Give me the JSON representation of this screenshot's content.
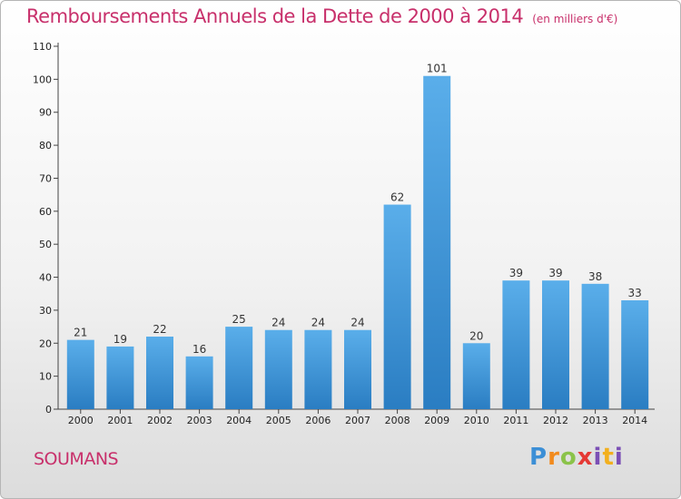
{
  "header": {
    "title": "Remboursements Annuels de la Dette de 2000 à 2014",
    "subtitle": "(en milliers d'€)"
  },
  "footer": {
    "commune": "SOUMANS",
    "logo": [
      "P",
      "r",
      "o",
      "x",
      "i",
      "t",
      "i"
    ]
  },
  "colors": {
    "accent": "#c8306b",
    "bar_top": "#5aaeea",
    "bar_bottom": "#2a7dc2"
  },
  "chart_data": {
    "type": "bar",
    "title": "Remboursements Annuels de la Dette de 2000 à 2014",
    "xlabel": "",
    "ylabel": "",
    "categories": [
      "2000",
      "2001",
      "2002",
      "2003",
      "2004",
      "2005",
      "2006",
      "2007",
      "2008",
      "2009",
      "2010",
      "2011",
      "2012",
      "2013",
      "2014"
    ],
    "values": [
      21,
      19,
      22,
      16,
      25,
      24,
      24,
      24,
      62,
      101,
      20,
      39,
      39,
      38,
      33
    ],
    "ylim": [
      0,
      110
    ],
    "yticks": [
      0,
      10,
      20,
      30,
      40,
      50,
      60,
      70,
      80,
      90,
      100,
      110
    ],
    "grid": false,
    "legend": "none"
  }
}
